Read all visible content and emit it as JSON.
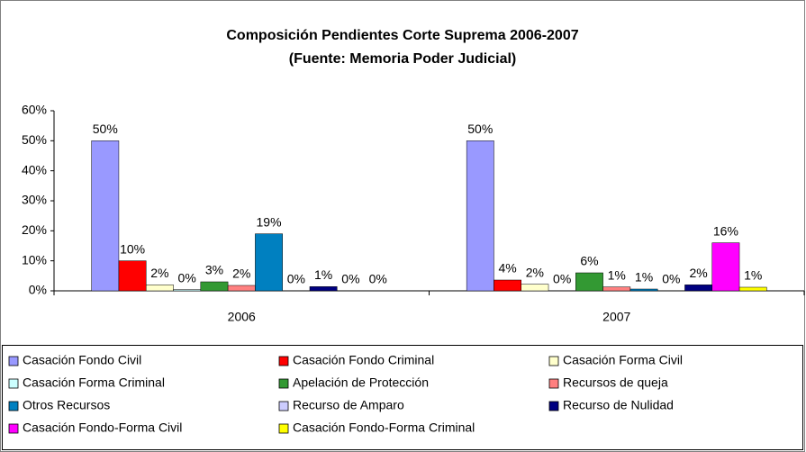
{
  "chart_data": {
    "type": "bar",
    "title": "Composición Pendientes Corte Suprema 2006-2007",
    "subtitle": "(Fuente: Memoria Poder Judicial)",
    "categories": [
      "2006",
      "2007"
    ],
    "ylim": [
      0,
      60
    ],
    "yticks": [
      {
        "value": 0,
        "label": "0%"
      },
      {
        "value": 10,
        "label": "10%"
      },
      {
        "value": 20,
        "label": "20%"
      },
      {
        "value": 30,
        "label": "30%"
      },
      {
        "value": 40,
        "label": "40%"
      },
      {
        "value": 50,
        "label": "50%"
      },
      {
        "value": 60,
        "label": "60%"
      }
    ],
    "grid": false,
    "legend": "bottom",
    "series": [
      {
        "name": "Casación Fondo Civil",
        "color": "#9999ff",
        "values": [
          50,
          50
        ],
        "value_labels": [
          "50%",
          "50%"
        ]
      },
      {
        "name": "Casación Fondo Criminal",
        "color": "#ff0000",
        "values": [
          10,
          3.6
        ],
        "value_labels": [
          "10%",
          "4%"
        ]
      },
      {
        "name": "Casación Forma Civil",
        "color": "#ffffcc",
        "values": [
          2,
          2.2
        ],
        "value_labels": [
          "2%",
          "2%"
        ]
      },
      {
        "name": "Casación Forma Criminal",
        "color": "#ccffff",
        "values": [
          0.4,
          0
        ],
        "value_labels": [
          "0%",
          "0%"
        ]
      },
      {
        "name": "Apelación de Protección",
        "color": "#339933",
        "values": [
          3,
          6
        ],
        "value_labels": [
          "3%",
          "6%"
        ]
      },
      {
        "name": "Recursos de queja",
        "color": "#ff8080",
        "values": [
          1.8,
          1.3
        ],
        "value_labels": [
          "2%",
          "1%"
        ]
      },
      {
        "name": "Otros Recursos",
        "color": "#0080c0",
        "values": [
          19,
          0.6
        ],
        "value_labels": [
          "19%",
          "1%"
        ]
      },
      {
        "name": "Recurso de Amparo",
        "color": "#ccccff",
        "values": [
          0,
          0
        ],
        "value_labels": [
          "0%",
          "0%"
        ]
      },
      {
        "name": "Recurso de Nulidad",
        "color": "#000080",
        "values": [
          1.4,
          2
        ],
        "value_labels": [
          "1%",
          "2%"
        ]
      },
      {
        "name": "Casación Fondo-Forma Civil",
        "color": "#ff00ff",
        "values": [
          0,
          16
        ],
        "value_labels": [
          "0%",
          "16%"
        ]
      },
      {
        "name": "Casación Fondo-Forma Criminal",
        "color": "#ffff00",
        "values": [
          0,
          1.2
        ],
        "value_labels": [
          "0%",
          "1%"
        ]
      }
    ]
  }
}
